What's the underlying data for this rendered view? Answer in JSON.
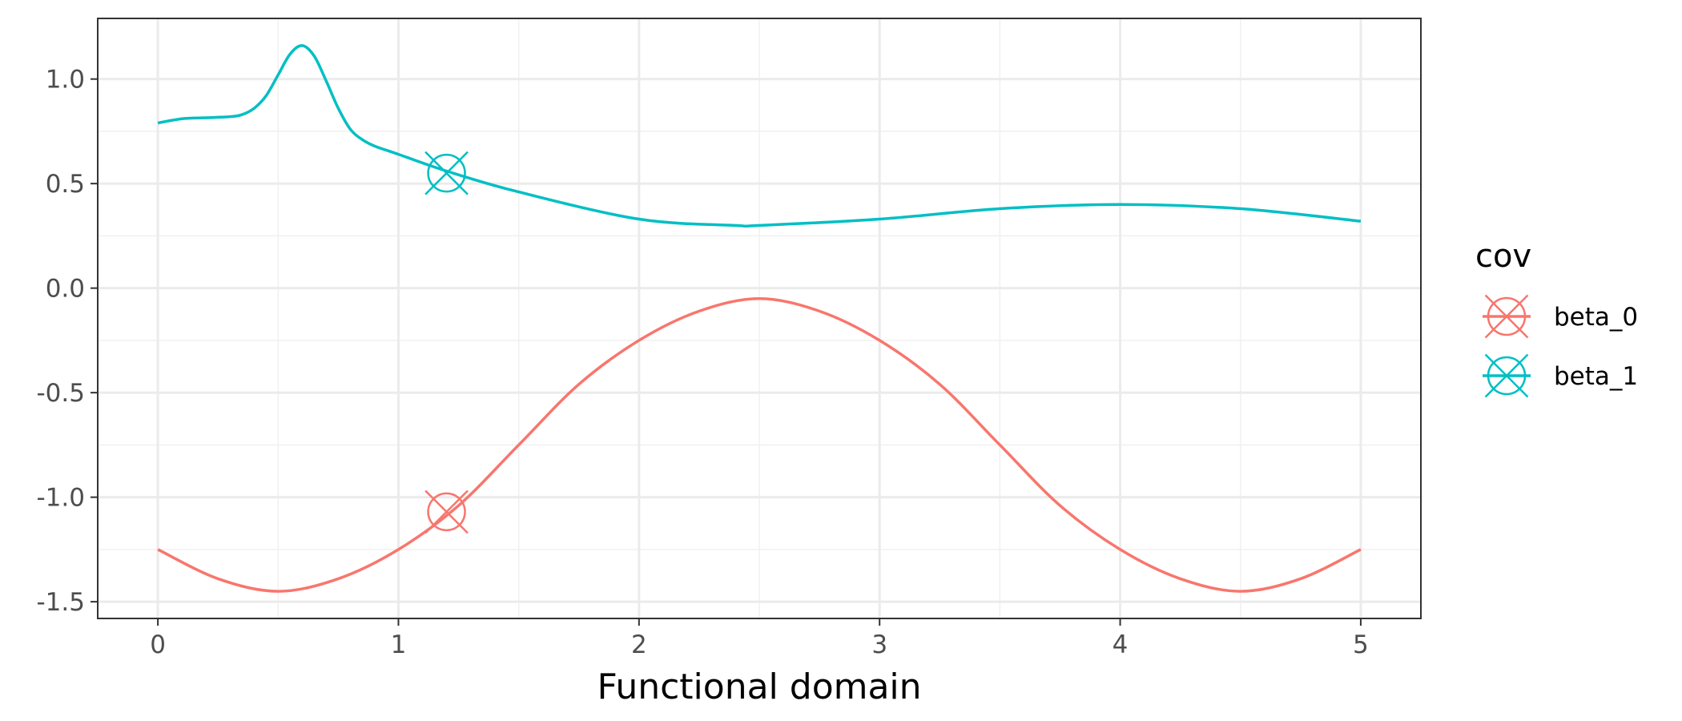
{
  "chart_data": {
    "type": "line",
    "title": "",
    "xlabel": "Functional domain",
    "ylabel": "",
    "xlim": [
      -0.25,
      5.25
    ],
    "ylim": [
      -1.58,
      1.29
    ],
    "x_ticks": [
      0,
      1,
      2,
      3,
      4,
      5
    ],
    "x_tick_labels": [
      "0",
      "1",
      "2",
      "3",
      "4",
      "5"
    ],
    "y_ticks": [
      -1.5,
      -1.0,
      -0.5,
      0.0,
      0.5,
      1.0
    ],
    "y_tick_labels": [
      "-1.5",
      "-1.0",
      "-0.5",
      "0.0",
      "0.5",
      "1.0"
    ],
    "grid": true,
    "legend": {
      "title": "cov",
      "position": "right"
    },
    "series": [
      {
        "name": "beta_0",
        "color": "#F8766D",
        "x": [
          0,
          0.25,
          0.5,
          0.75,
          1.0,
          1.25,
          1.5,
          1.75,
          2.0,
          2.25,
          2.5,
          2.75,
          3.0,
          3.25,
          3.5,
          3.75,
          4.0,
          4.25,
          4.5,
          4.75,
          5.0
        ],
        "values": [
          -1.25,
          -1.39,
          -1.45,
          -1.39,
          -1.25,
          -1.04,
          -0.75,
          -0.46,
          -0.25,
          -0.11,
          -0.05,
          -0.11,
          -0.25,
          -0.46,
          -0.75,
          -1.04,
          -1.25,
          -1.39,
          -1.45,
          -1.39,
          -1.25
        ],
        "marker": {
          "x": 1.2,
          "y": -1.07,
          "symbol": "circle-x"
        }
      },
      {
        "name": "beta_1",
        "color": "#00BFC4",
        "x": [
          0,
          0.1,
          0.2,
          0.3,
          0.35,
          0.4,
          0.45,
          0.5,
          0.55,
          0.6,
          0.65,
          0.7,
          0.75,
          0.8,
          0.85,
          0.9,
          1.0,
          1.2,
          1.5,
          2.0,
          2.4,
          2.5,
          3.0,
          3.5,
          4.0,
          4.5,
          5.0
        ],
        "values": [
          0.79,
          0.81,
          0.815,
          0.82,
          0.83,
          0.86,
          0.92,
          1.02,
          1.12,
          1.16,
          1.11,
          0.99,
          0.86,
          0.76,
          0.71,
          0.68,
          0.64,
          0.56,
          0.46,
          0.33,
          0.3,
          0.3,
          0.33,
          0.38,
          0.4,
          0.38,
          0.32
        ],
        "marker": {
          "x": 1.2,
          "y": 0.55,
          "symbol": "circle-x"
        }
      }
    ]
  }
}
